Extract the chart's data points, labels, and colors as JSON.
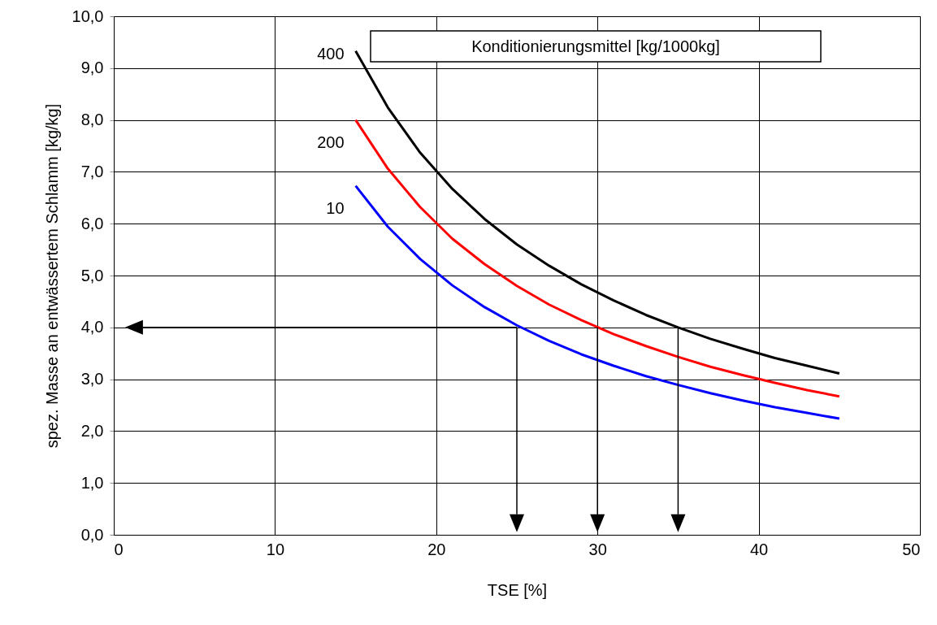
{
  "chart_data": {
    "type": "line",
    "xlabel": "TSE [%]",
    "ylabel": "spez. Masse an entwässertem Schlamm [kg/kg]",
    "legend_title": "Konditionierungsmittel [kg/1000kg]",
    "x": [
      15,
      17,
      19,
      21,
      23,
      25,
      27,
      29,
      31,
      33,
      35,
      37,
      39,
      41,
      43,
      45
    ],
    "series": [
      {
        "name": "400",
        "color": "#000000",
        "values": [
          9.33,
          8.24,
          7.37,
          6.67,
          6.09,
          5.6,
          5.19,
          4.83,
          4.52,
          4.24,
          4.0,
          3.78,
          3.59,
          3.41,
          3.26,
          3.11
        ]
      },
      {
        "name": "200",
        "color": "#ff0000",
        "values": [
          8.0,
          7.06,
          6.32,
          5.71,
          5.22,
          4.8,
          4.44,
          4.14,
          3.87,
          3.64,
          3.43,
          3.24,
          3.08,
          2.93,
          2.79,
          2.67
        ]
      },
      {
        "name": "10",
        "color": "#0000ff",
        "values": [
          6.73,
          5.94,
          5.32,
          4.81,
          4.39,
          4.04,
          3.74,
          3.48,
          3.26,
          3.06,
          2.89,
          2.73,
          2.59,
          2.46,
          2.35,
          2.24
        ]
      }
    ],
    "xlim": [
      0,
      50
    ],
    "xticks": [
      0,
      10,
      20,
      30,
      40,
      50
    ],
    "ylim": [
      0,
      10
    ],
    "yticks": [
      {
        "value": 0,
        "label": "0,0"
      },
      {
        "value": 1,
        "label": "1,0"
      },
      {
        "value": 2,
        "label": "2,0"
      },
      {
        "value": 3,
        "label": "3,0"
      },
      {
        "value": 4,
        "label": "4,0"
      },
      {
        "value": 5,
        "label": "5,0"
      },
      {
        "value": 6,
        "label": "6,0"
      },
      {
        "value": 7,
        "label": "7,0"
      },
      {
        "value": 8,
        "label": "8,0"
      },
      {
        "value": 9,
        "label": "9,0"
      },
      {
        "value": 10,
        "label": "10,0"
      }
    ],
    "grid": true,
    "marker": "none",
    "line_style": "solid"
  }
}
